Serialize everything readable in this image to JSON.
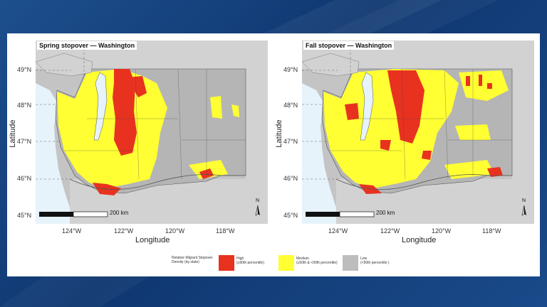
{
  "maps": [
    {
      "title": "Spring stopover — Washington",
      "lat_ticks": [
        "49°N",
        "48°N",
        "47°N",
        "46°N",
        "45°N"
      ],
      "lon_ticks": [
        "124°W",
        "122°W",
        "120°W",
        "118°W"
      ],
      "ylabel": "Latitude",
      "xlabel": "Longitude",
      "scale_label": "200 km",
      "north_label": "N"
    },
    {
      "title": "Fall stopover — Washington",
      "lat_ticks": [
        "49°N",
        "48°N",
        "47°N",
        "46°N",
        "45°N"
      ],
      "lon_ticks": [
        "124°W",
        "122°W",
        "120°W",
        "118°W"
      ],
      "ylabel": "Latitude",
      "xlabel": "Longitude",
      "scale_label": "200 km",
      "north_label": "N"
    }
  ],
  "legend": {
    "title": "Relative Migrant Stopover Density (by state)",
    "items": [
      {
        "label": "High",
        "sub": "(≥90th percentile)",
        "color": "#e8321f"
      },
      {
        "label": "Medium",
        "sub": "(≥50th & <90th percentile)",
        "color": "#ffff33"
      },
      {
        "label": "Low",
        "sub": "(<50th percentile )",
        "color": "#bdbdbd"
      }
    ]
  },
  "colors": {
    "high": "#e8321f",
    "medium": "#ffff33",
    "low": "#bdbdbd",
    "water": "#e8f4fb",
    "land": "#c8c8c8"
  }
}
